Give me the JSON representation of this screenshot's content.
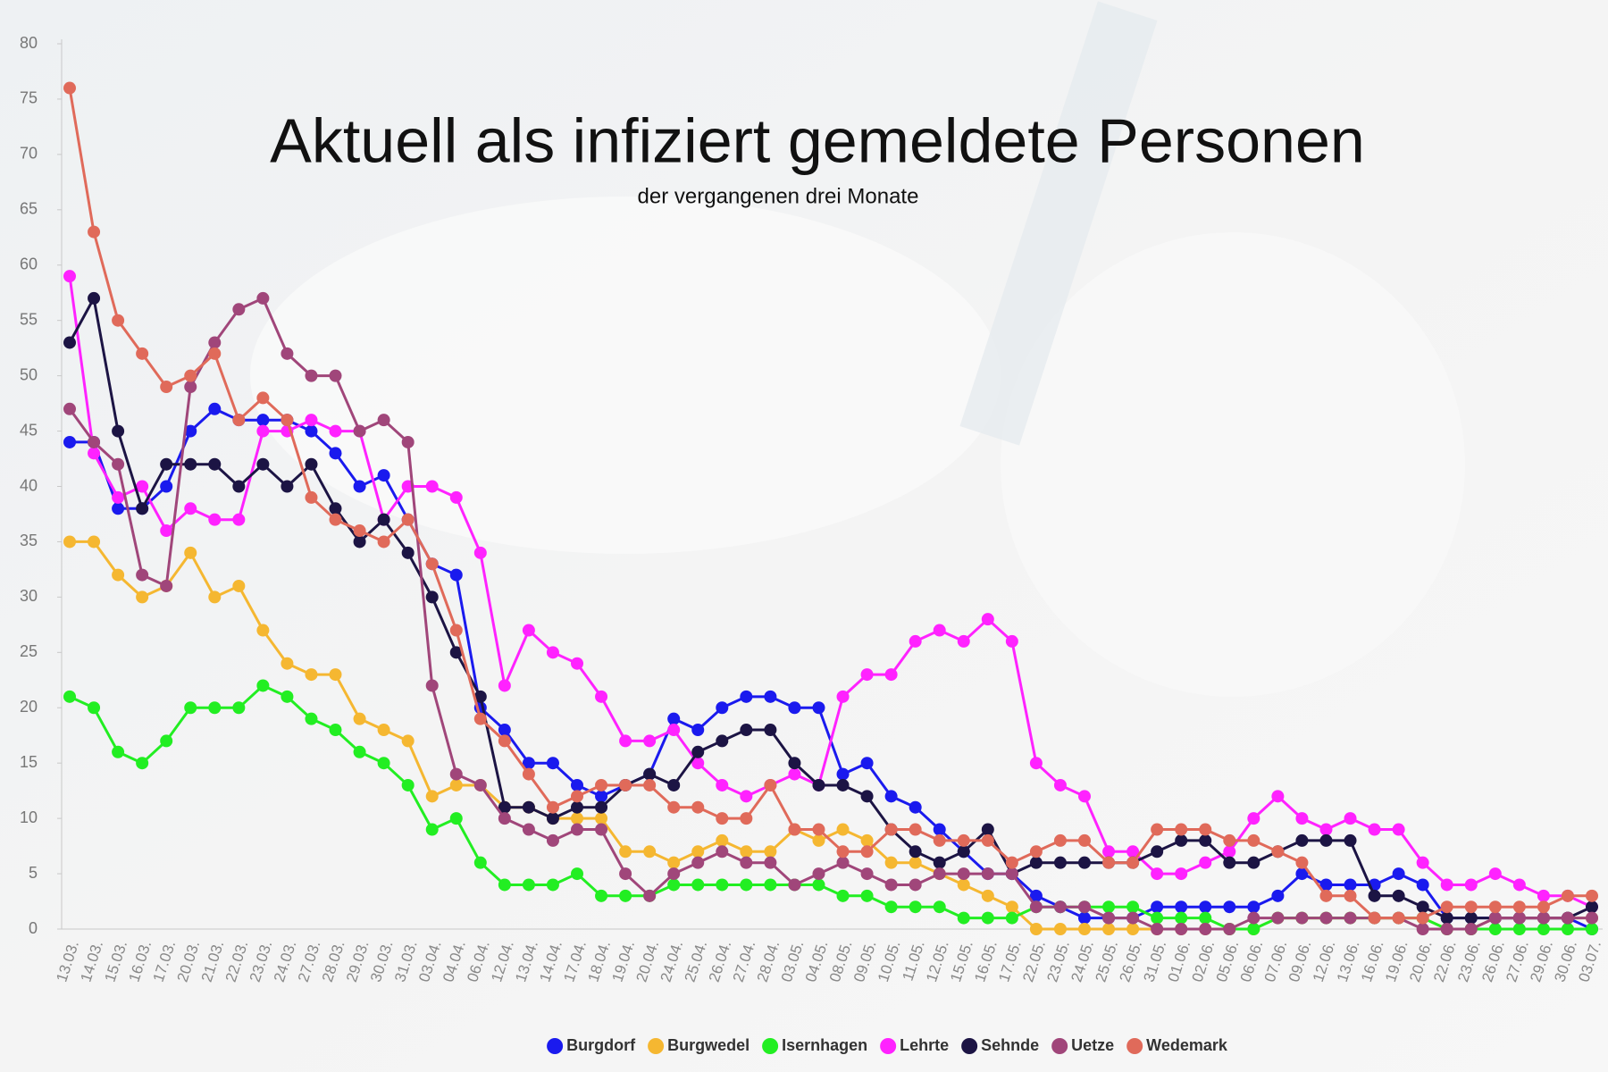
{
  "chart_data": {
    "type": "line",
    "title": "Aktuell als infiziert gemeldete Personen",
    "subtitle": "der vergangenen drei Monate",
    "categories": [
      "13.03.",
      "14.03.",
      "15.03.",
      "16.03.",
      "17.03.",
      "20.03.",
      "21.03.",
      "22.03.",
      "23.03.",
      "24.03.",
      "27.03.",
      "28.03.",
      "29.03.",
      "30.03.",
      "31.03.",
      "03.04.",
      "04.04.",
      "06.04.",
      "12.04.",
      "13.04.",
      "14.04.",
      "17.04.",
      "18.04.",
      "19.04.",
      "20.04.",
      "24.04.",
      "25.04.",
      "26.04.",
      "27.04.",
      "28.04.",
      "03.05.",
      "04.05.",
      "08.05.",
      "09.05.",
      "10.05.",
      "11.05.",
      "12.05.",
      "15.05.",
      "16.05.",
      "17.05.",
      "22.05.",
      "23.05.",
      "24.05.",
      "25.05.",
      "26.05.",
      "31.05.",
      "01.06.",
      "02.06.",
      "05.06.",
      "06.06.",
      "07.06.",
      "09.06.",
      "12.06.",
      "13.06.",
      "16.06.",
      "19.06.",
      "20.06.",
      "22.06.",
      "23.06.",
      "26.06.",
      "27.06.",
      "29.06.",
      "30.06.",
      "03.07."
    ],
    "series": [
      {
        "name": "Burgdorf",
        "color": "#1a1aee",
        "values": [
          44,
          44,
          38,
          38,
          40,
          45,
          47,
          46,
          46,
          46,
          45,
          43,
          40,
          41,
          37,
          33,
          32,
          20,
          18,
          15,
          15,
          13,
          12,
          13,
          14,
          19,
          18,
          20,
          21,
          21,
          20,
          20,
          14,
          15,
          12,
          11,
          9,
          7,
          5,
          5,
          3,
          2,
          1,
          1,
          1,
          2,
          2,
          2,
          2,
          2,
          3,
          5,
          4,
          4,
          4,
          5,
          4,
          1,
          1,
          1,
          1,
          1,
          1,
          0
        ]
      },
      {
        "name": "Burgwedel",
        "color": "#f5b731",
        "values": [
          35,
          35,
          32,
          30,
          31,
          34,
          30,
          31,
          27,
          24,
          23,
          23,
          19,
          18,
          17,
          12,
          13,
          13,
          11,
          11,
          10,
          10,
          10,
          7,
          7,
          6,
          7,
          8,
          7,
          7,
          9,
          8,
          9,
          8,
          6,
          6,
          5,
          4,
          3,
          2,
          0,
          0,
          0,
          0,
          0,
          0,
          0,
          0,
          0,
          0,
          1,
          1,
          1,
          1,
          1,
          1,
          1,
          0,
          0,
          1,
          1,
          1,
          1,
          1
        ]
      },
      {
        "name": "Isernhagen",
        "color": "#22ee22",
        "values": [
          21,
          20,
          16,
          15,
          17,
          20,
          20,
          20,
          22,
          21,
          19,
          18,
          16,
          15,
          13,
          9,
          10,
          6,
          4,
          4,
          4,
          5,
          3,
          3,
          3,
          4,
          4,
          4,
          4,
          4,
          4,
          4,
          3,
          3,
          2,
          2,
          2,
          1,
          1,
          1,
          2,
          2,
          2,
          2,
          2,
          1,
          1,
          1,
          0,
          0,
          1,
          1,
          1,
          1,
          1,
          1,
          1,
          0,
          0,
          0,
          0,
          0,
          0,
          0
        ]
      },
      {
        "name": "Lehrte",
        "color": "#ff22ff",
        "values": [
          59,
          43,
          39,
          40,
          36,
          38,
          37,
          37,
          45,
          45,
          46,
          45,
          45,
          37,
          40,
          40,
          39,
          34,
          22,
          27,
          25,
          24,
          21,
          17,
          17,
          18,
          15,
          13,
          12,
          13,
          14,
          13,
          21,
          23,
          23,
          26,
          27,
          26,
          28,
          26,
          15,
          13,
          12,
          7,
          7,
          5,
          5,
          6,
          7,
          10,
          12,
          10,
          9,
          10,
          9,
          9,
          6,
          4,
          4,
          5,
          4,
          3,
          3,
          2
        ]
      },
      {
        "name": "Sehnde",
        "color": "#1c1444",
        "values": [
          53,
          57,
          45,
          38,
          42,
          42,
          42,
          40,
          42,
          40,
          42,
          38,
          35,
          37,
          34,
          30,
          25,
          21,
          11,
          11,
          10,
          11,
          11,
          13,
          14,
          13,
          16,
          17,
          18,
          18,
          15,
          13,
          13,
          12,
          9,
          7,
          6,
          7,
          9,
          5,
          6,
          6,
          6,
          6,
          6,
          7,
          8,
          8,
          6,
          6,
          7,
          8,
          8,
          8,
          3,
          3,
          2,
          1,
          1,
          1,
          1,
          1,
          1,
          2
        ]
      },
      {
        "name": "Uetze",
        "color": "#a0467a",
        "values": [
          47,
          44,
          42,
          32,
          31,
          49,
          53,
          56,
          57,
          52,
          50,
          50,
          45,
          46,
          44,
          22,
          14,
          13,
          10,
          9,
          8,
          9,
          9,
          5,
          3,
          5,
          6,
          7,
          6,
          6,
          4,
          5,
          6,
          5,
          4,
          4,
          5,
          5,
          5,
          5,
          2,
          2,
          2,
          1,
          1,
          0,
          0,
          0,
          0,
          1,
          1,
          1,
          1,
          1,
          1,
          1,
          0,
          0,
          0,
          1,
          1,
          1,
          1,
          1
        ]
      },
      {
        "name": "Wedemark",
        "color": "#e06a5a",
        "values": [
          76,
          63,
          55,
          52,
          49,
          50,
          52,
          46,
          48,
          46,
          39,
          37,
          36,
          35,
          37,
          33,
          27,
          19,
          17,
          14,
          11,
          12,
          13,
          13,
          13,
          11,
          11,
          10,
          10,
          13,
          9,
          9,
          7,
          7,
          9,
          9,
          8,
          8,
          8,
          6,
          7,
          8,
          8,
          6,
          6,
          9,
          9,
          9,
          8,
          8,
          7,
          6,
          3,
          3,
          1,
          1,
          1,
          2,
          2,
          2,
          2,
          2,
          3,
          3
        ]
      }
    ],
    "ylim": [
      0,
      80
    ],
    "yticks": [
      0,
      5,
      10,
      15,
      20,
      25,
      30,
      35,
      40,
      45,
      50,
      55,
      60,
      65,
      70,
      75,
      80
    ],
    "grid": false,
    "legend": "bottom"
  }
}
